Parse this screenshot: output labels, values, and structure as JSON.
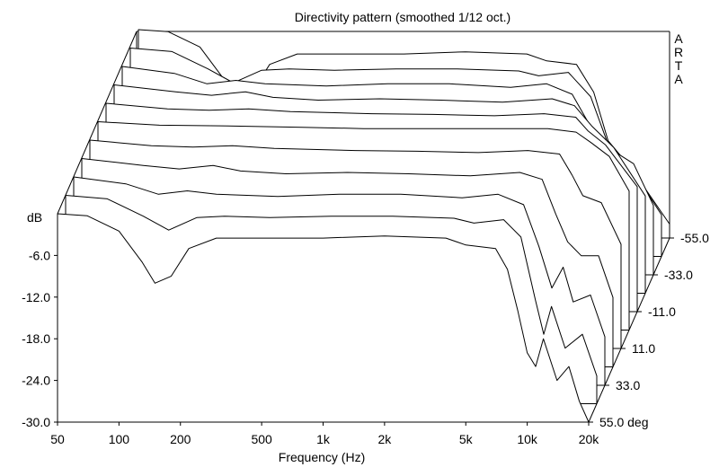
{
  "chart_data": {
    "type": "waterfall-3d",
    "title": "Directivity pattern (smoothed 1/12 oct.)",
    "xlabel": "Frequency (Hz)",
    "xscale": "log",
    "xlim": [
      50,
      20000
    ],
    "x_ticks": [
      "50",
      "100",
      "200",
      "500",
      "1k",
      "2k",
      "5k",
      "10k",
      "20k"
    ],
    "x_tick_values": [
      50,
      100,
      200,
      500,
      1000,
      2000,
      5000,
      10000,
      20000
    ],
    "ylabel": "dB",
    "ylim": [
      -30,
      0
    ],
    "y_ticks": [
      "-6.0",
      "-12.0",
      "-18.0",
      "-24.0",
      "-30.0"
    ],
    "y_tick_values": [
      -6,
      -12,
      -18,
      -24,
      -30
    ],
    "zlabel": "deg",
    "z_ticks": [
      "-55.0",
      "-33.0",
      "-11.0",
      "11.0",
      "33.0",
      "55.0 deg"
    ],
    "z_tick_values": [
      -55,
      -33,
      -11,
      11,
      33,
      55
    ],
    "watermark": "ARTA",
    "grid": false,
    "series": [
      {
        "angle": 55,
        "points": [
          [
            50,
            0
          ],
          [
            70,
            -0.3
          ],
          [
            100,
            -2.5
          ],
          [
            130,
            -7
          ],
          [
            150,
            -10
          ],
          [
            180,
            -9
          ],
          [
            220,
            -5
          ],
          [
            300,
            -3.5
          ],
          [
            500,
            -3.5
          ],
          [
            1000,
            -3.5
          ],
          [
            2000,
            -3.2
          ],
          [
            4000,
            -3.5
          ],
          [
            5000,
            -4.5
          ],
          [
            7000,
            -5
          ],
          [
            8000,
            -8
          ],
          [
            9000,
            -14
          ],
          [
            10000,
            -20
          ],
          [
            11000,
            -22
          ],
          [
            12000,
            -18
          ],
          [
            14000,
            -24
          ],
          [
            16000,
            -22
          ],
          [
            18000,
            -27
          ],
          [
            20000,
            -30
          ]
        ]
      },
      {
        "angle": 44,
        "points": [
          [
            50,
            0
          ],
          [
            80,
            -0.5
          ],
          [
            120,
            -3
          ],
          [
            160,
            -5
          ],
          [
            220,
            -3.2
          ],
          [
            300,
            -3
          ],
          [
            500,
            -3.2
          ],
          [
            1000,
            -3
          ],
          [
            2000,
            -3
          ],
          [
            4000,
            -3.3
          ],
          [
            5000,
            -4
          ],
          [
            7000,
            -3.5
          ],
          [
            8500,
            -6
          ],
          [
            10000,
            -15
          ],
          [
            11000,
            -20
          ],
          [
            12000,
            -16
          ],
          [
            14000,
            -22
          ],
          [
            17000,
            -20
          ],
          [
            20000,
            -26
          ]
        ]
      },
      {
        "angle": 33,
        "points": [
          [
            50,
            0
          ],
          [
            90,
            -1
          ],
          [
            130,
            -2.5
          ],
          [
            180,
            -2
          ],
          [
            250,
            -2.5
          ],
          [
            500,
            -2.8
          ],
          [
            1000,
            -2.5
          ],
          [
            2000,
            -2.5
          ],
          [
            4000,
            -3
          ],
          [
            6000,
            -2.5
          ],
          [
            8000,
            -4
          ],
          [
            9500,
            -10
          ],
          [
            11000,
            -16
          ],
          [
            12500,
            -13
          ],
          [
            14000,
            -18
          ],
          [
            17000,
            -17
          ],
          [
            20000,
            -23
          ]
        ]
      },
      {
        "angle": 22,
        "points": [
          [
            50,
            0
          ],
          [
            100,
            -1
          ],
          [
            150,
            -1.5
          ],
          [
            220,
            -1
          ],
          [
            300,
            -1.8
          ],
          [
            500,
            -2.2
          ],
          [
            1000,
            -2
          ],
          [
            2000,
            -2.2
          ],
          [
            4000,
            -2.5
          ],
          [
            7000,
            -2
          ],
          [
            9000,
            -3
          ],
          [
            10500,
            -8
          ],
          [
            12000,
            -12
          ],
          [
            14000,
            -14
          ],
          [
            17000,
            -14
          ],
          [
            20000,
            -20
          ]
        ]
      },
      {
        "angle": 11,
        "points": [
          [
            50,
            0
          ],
          [
            100,
            -0.8
          ],
          [
            160,
            -1
          ],
          [
            250,
            -0.8
          ],
          [
            400,
            -1.2
          ],
          [
            1000,
            -1.5
          ],
          [
            2000,
            -1.6
          ],
          [
            4000,
            -1.8
          ],
          [
            7000,
            -1.5
          ],
          [
            10000,
            -2
          ],
          [
            11500,
            -5
          ],
          [
            13000,
            -8
          ],
          [
            16000,
            -9
          ],
          [
            20000,
            -15
          ]
        ]
      },
      {
        "angle": 0,
        "points": [
          [
            50,
            0
          ],
          [
            100,
            -0.5
          ],
          [
            200,
            -0.6
          ],
          [
            500,
            -0.8
          ],
          [
            1000,
            -1
          ],
          [
            2000,
            -1
          ],
          [
            5000,
            -1
          ],
          [
            8000,
            -1
          ],
          [
            11000,
            -1.5
          ],
          [
            13000,
            -3
          ],
          [
            16000,
            -5
          ],
          [
            20000,
            -10
          ]
        ]
      },
      {
        "angle": -11,
        "points": [
          [
            50,
            0
          ],
          [
            100,
            -0.8
          ],
          [
            160,
            -1
          ],
          [
            250,
            -0.8
          ],
          [
            400,
            -1.2
          ],
          [
            1000,
            -1.5
          ],
          [
            2000,
            -1.6
          ],
          [
            4000,
            -1.8
          ],
          [
            7000,
            -1.5
          ],
          [
            10000,
            -2
          ],
          [
            11500,
            -4
          ],
          [
            14000,
            -6
          ],
          [
            20000,
            -12
          ]
        ]
      },
      {
        "angle": -22,
        "points": [
          [
            50,
            0
          ],
          [
            100,
            -1
          ],
          [
            150,
            -1.5
          ],
          [
            220,
            -1
          ],
          [
            300,
            -1.8
          ],
          [
            500,
            -2.2
          ],
          [
            1000,
            -2
          ],
          [
            2000,
            -2.2
          ],
          [
            4000,
            -2.5
          ],
          [
            7000,
            -2
          ],
          [
            9000,
            -3
          ],
          [
            11000,
            -6
          ],
          [
            14000,
            -9
          ],
          [
            20000,
            -16
          ]
        ]
      },
      {
        "angle": -33,
        "points": [
          [
            50,
            0
          ],
          [
            90,
            -1
          ],
          [
            130,
            -2.5
          ],
          [
            180,
            -2
          ],
          [
            250,
            -2.5
          ],
          [
            500,
            -2.8
          ],
          [
            1000,
            -2.5
          ],
          [
            2000,
            -2.5
          ],
          [
            4000,
            -3
          ],
          [
            6000,
            -2.5
          ],
          [
            8000,
            -4
          ],
          [
            10000,
            -9
          ],
          [
            12500,
            -12
          ],
          [
            16000,
            -14
          ],
          [
            20000,
            -20
          ]
        ]
      },
      {
        "angle": -44,
        "points": [
          [
            50,
            0
          ],
          [
            80,
            -0.5
          ],
          [
            120,
            -3
          ],
          [
            160,
            -5
          ],
          [
            220,
            -3.2
          ],
          [
            300,
            -3
          ],
          [
            500,
            -3.2
          ],
          [
            1000,
            -3
          ],
          [
            2000,
            -3
          ],
          [
            4000,
            -3.3
          ],
          [
            5000,
            -4
          ],
          [
            7000,
            -3.5
          ],
          [
            9000,
            -7
          ],
          [
            11000,
            -14
          ],
          [
            14000,
            -17
          ],
          [
            20000,
            -24
          ]
        ]
      },
      {
        "angle": -55,
        "points": [
          [
            50,
            0
          ],
          [
            70,
            -0.3
          ],
          [
            100,
            -2.5
          ],
          [
            130,
            -7
          ],
          [
            150,
            -10
          ],
          [
            180,
            -9
          ],
          [
            220,
            -5
          ],
          [
            300,
            -3.5
          ],
          [
            500,
            -3.5
          ],
          [
            1000,
            -3.5
          ],
          [
            2000,
            -3.2
          ],
          [
            4000,
            -3.5
          ],
          [
            5000,
            -4.5
          ],
          [
            7000,
            -5
          ],
          [
            8500,
            -9
          ],
          [
            10000,
            -16
          ],
          [
            13000,
            -20
          ],
          [
            20000,
            -28
          ]
        ]
      }
    ]
  }
}
